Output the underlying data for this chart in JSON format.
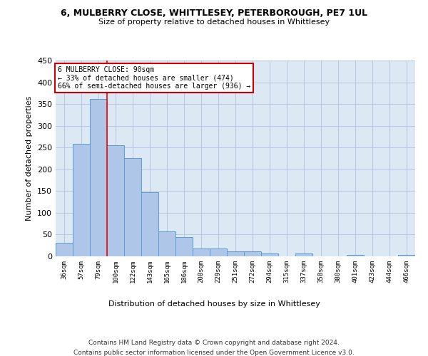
{
  "title": "6, MULBERRY CLOSE, WHITTLESEY, PETERBOROUGH, PE7 1UL",
  "subtitle": "Size of property relative to detached houses in Whittlesey",
  "xlabel": "Distribution of detached houses by size in Whittlesey",
  "ylabel": "Number of detached properties",
  "categories": [
    "36sqm",
    "57sqm",
    "79sqm",
    "100sqm",
    "122sqm",
    "143sqm",
    "165sqm",
    "186sqm",
    "208sqm",
    "229sqm",
    "251sqm",
    "272sqm",
    "294sqm",
    "315sqm",
    "337sqm",
    "358sqm",
    "380sqm",
    "401sqm",
    "423sqm",
    "444sqm",
    "466sqm"
  ],
  "values": [
    31,
    259,
    362,
    255,
    225,
    148,
    57,
    45,
    18,
    18,
    11,
    11,
    7,
    0,
    6,
    0,
    0,
    4,
    0,
    0,
    4
  ],
  "bar_color": "#aec6e8",
  "bar_edge_color": "#5b9bd5",
  "background_color": "#ffffff",
  "ax_background_color": "#dde8f5",
  "grid_color": "#b0c4de",
  "annotation_line1": "6 MULBERRY CLOSE: 90sqm",
  "annotation_line2": "← 33% of detached houses are smaller (474)",
  "annotation_line3": "66% of semi-detached houses are larger (936) →",
  "annotation_box_color": "#ffffff",
  "annotation_box_edge_color": "#cc0000",
  "red_line_x": 2.5,
  "ylim": [
    0,
    450
  ],
  "yticks": [
    0,
    50,
    100,
    150,
    200,
    250,
    300,
    350,
    400,
    450
  ],
  "footer_line1": "Contains HM Land Registry data © Crown copyright and database right 2024.",
  "footer_line2": "Contains public sector information licensed under the Open Government Licence v3.0."
}
